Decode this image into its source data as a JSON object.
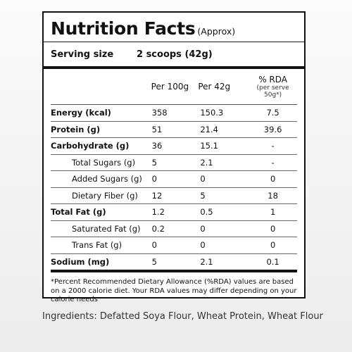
{
  "label": {
    "title": "Nutrition Facts",
    "title_note": "(Approx)",
    "serving_size_label": "Serving size",
    "serving_size_value": "2 scoops (42g)",
    "columns": {
      "per100": "Per 100g",
      "per42": "Per 42g",
      "rda": "% RDA",
      "rda_note": "(per serve 50g*)"
    },
    "rows": [
      {
        "name": "Energy (kcal)",
        "per100": "358",
        "per42": "150.3",
        "rda": "7.5"
      },
      {
        "name": "Protein (g)",
        "per100": "51",
        "per42": "21.4",
        "rda": "39.6"
      },
      {
        "name": "Carbohydrate (g)",
        "per100": "36",
        "per42": "15.1",
        "rda": "-"
      },
      {
        "name": "Total Sugars (g)",
        "per100": "5",
        "per42": "2.1",
        "rda": "-"
      },
      {
        "name": "Added Sugars (g)",
        "per100": "0",
        "per42": "0",
        "rda": "0"
      },
      {
        "name": "Dietary Fiber (g)",
        "per100": "12",
        "per42": "5",
        "rda": "18"
      },
      {
        "name": "Total Fat (g)",
        "per100": "1.2",
        "per42": "0.5",
        "rda": "1"
      },
      {
        "name": "Saturated Fat (g)",
        "per100": "0.2",
        "per42": "0",
        "rda": "0"
      },
      {
        "name": "Trans Fat (g)",
        "per100": "0",
        "per42": "0",
        "rda": "0"
      },
      {
        "name": "Sodium (mg)",
        "per100": "5",
        "per42": "2.1",
        "rda": "0.1"
      }
    ],
    "footnote": "*Percent Recommended Dietary Allowance (%RDA) values are based on a 2000 calorie diet. Your RDA values may differ depending on your calorie needs"
  },
  "ingredients": "Ingredients: Defatted Soya Flour, Wheat Protein, Wheat Flour"
}
